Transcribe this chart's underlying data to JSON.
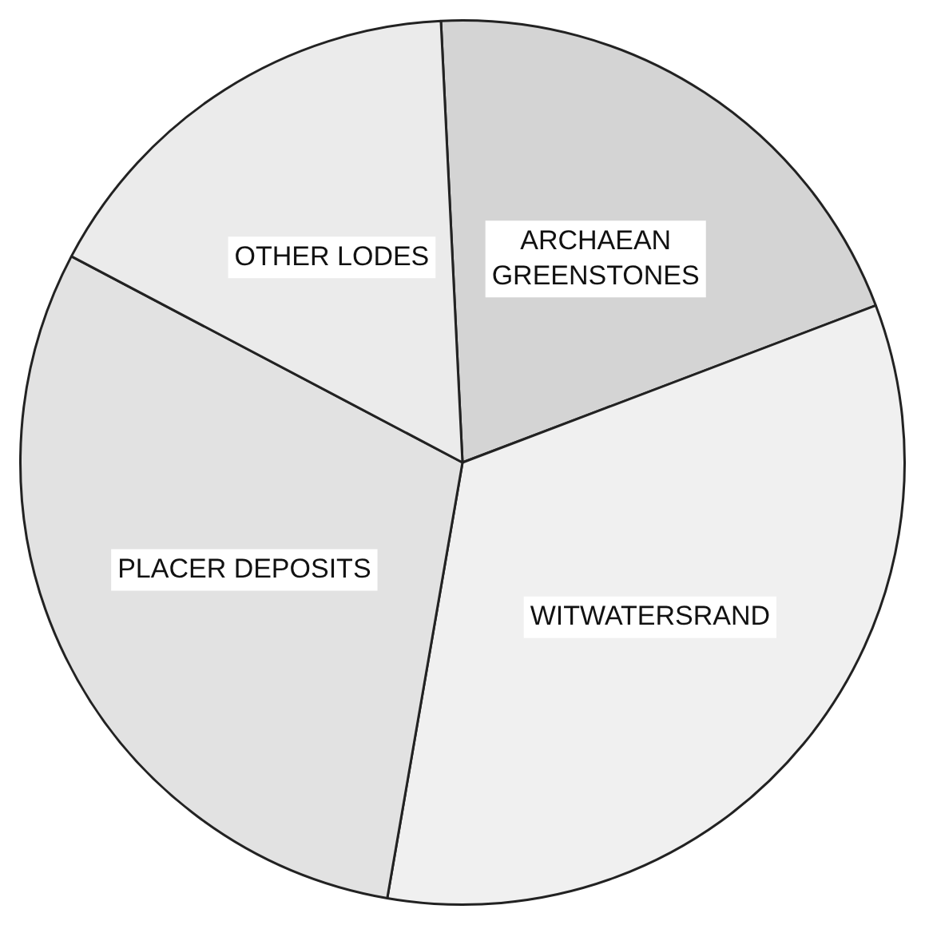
{
  "chart_data": {
    "type": "pie",
    "categories": [
      "ARCHAEAN GREENSTONES",
      "WITWATERSRAND",
      "PLACER DEPOSITS",
      "OTHER LODES"
    ],
    "values": [
      20,
      33.5,
      30,
      16.5
    ],
    "colors": [
      "#d4d4d4",
      "#f0f0f0",
      "#e2e2e2",
      "#ebebeb"
    ],
    "legend": false
  }
}
